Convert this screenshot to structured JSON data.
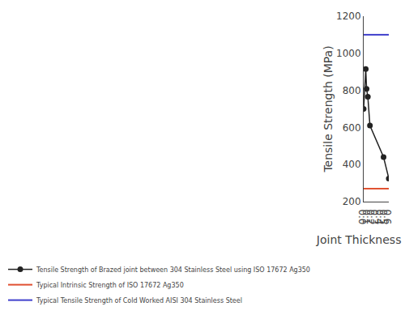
{
  "chart_data": {
    "type": "line",
    "xlabel": "Joint Thickness (mm)",
    "ylabel": "Tensile Strength (MPa)",
    "xlim": [
      0.0,
      0.6
    ],
    "ylim": [
      200,
      1200
    ],
    "xticks": [
      {
        "value": 0.0,
        "label": "0.0"
      },
      0.1,
      0.2,
      0.3,
      0.4,
      0.5,
      0.6
    ],
    "yticks": [
      200,
      400,
      600,
      800,
      1000,
      1200
    ],
    "grid": false,
    "legend": "bottom",
    "series": [
      {
        "name": "Tensile Strength of Brazed joint between 304 Stainless Steel using ISO 17672 Ag350",
        "color": "#222222",
        "marker": "circle",
        "line_style": "solid",
        "x": [
          0.0,
          0.05,
          0.07,
          0.1,
          0.15,
          0.475,
          0.6
        ],
        "values": [
          700,
          915,
          808,
          765,
          610,
          440,
          325
        ]
      },
      {
        "name": "Typical Intrinsic Strength of ISO 17672 Ag350",
        "color": "#e05030",
        "type": "hline",
        "line_style": "solid",
        "values": [
          270
        ]
      },
      {
        "name": "Typical Tensile Strength of Cold Worked AISI 304 Stainless Steel",
        "color": "#4040cc",
        "type": "hline",
        "line_style": "solid",
        "values": [
          1100
        ]
      }
    ]
  }
}
